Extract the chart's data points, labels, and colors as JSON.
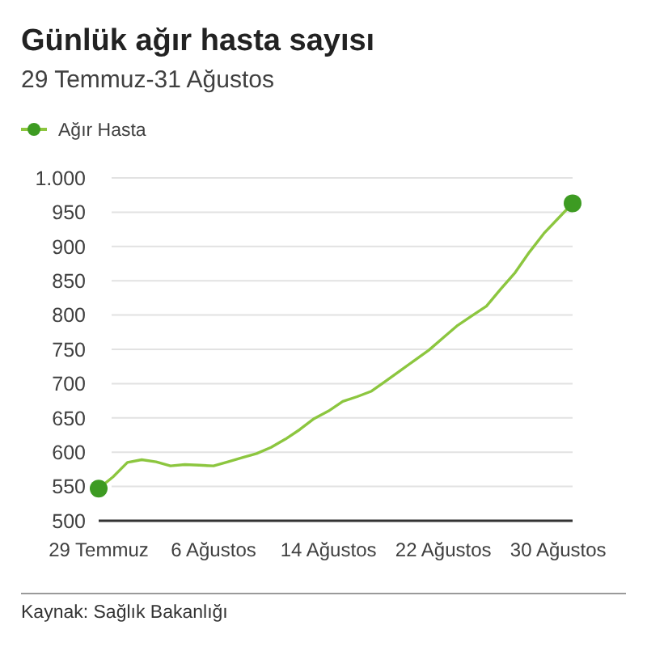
{
  "chart_data": {
    "type": "line",
    "title": "Günlük ağır hasta sayısı",
    "subtitle": "29 Temmuz-31 Ağustos",
    "x": [
      "--07-29",
      "--07-30",
      "--07-31",
      "--08-01",
      "--08-02",
      "--08-03",
      "--08-04",
      "--08-05",
      "--08-06",
      "--08-07",
      "--08-08",
      "--08-09",
      "--08-10",
      "--08-11",
      "--08-12",
      "--08-13",
      "--08-14",
      "--08-15",
      "--08-16",
      "--08-17",
      "--08-18",
      "--08-19",
      "--08-20",
      "--08-21",
      "--08-22",
      "--08-23",
      "--08-24",
      "--08-25",
      "--08-26",
      "--08-27",
      "--08-28",
      "--08-29",
      "--08-30",
      "--08-31"
    ],
    "series": [
      {
        "name": "Ağır Hasta",
        "color": "#8cc63f",
        "values": [
          547,
          564,
          585,
          589,
          586,
          580,
          582,
          581,
          580,
          586,
          592,
          598,
          607,
          619,
          633,
          649,
          660,
          674,
          681,
          689,
          704,
          719,
          734,
          749,
          767,
          785,
          799,
          813,
          838,
          862,
          892,
          919,
          941,
          963
        ]
      },
      {
        "type": "scatter",
        "color": "#3d9b22",
        "marker": "circle",
        "x": [
          "--07-29",
          "--08-31"
        ],
        "values": [
          547,
          963
        ]
      }
    ],
    "xlim": [
      "--07-29",
      "--08-31"
    ],
    "xticks": [
      {
        "value": "--07-29",
        "label": "29 Temmuz"
      },
      {
        "value": "--08-06",
        "label": "6 Ağustos"
      },
      {
        "value": "--08-14",
        "label": "14 Ağustos"
      },
      {
        "value": "--08-22",
        "label": "22 Ağustos"
      },
      {
        "value": "--08-30",
        "label": "30 Ağustos"
      }
    ],
    "ylim": [
      500,
      1000
    ],
    "yticks": [
      500,
      550,
      600,
      650,
      700,
      750,
      800,
      850,
      900,
      950,
      {
        "value": 1000,
        "label": "1.000"
      }
    ],
    "grid": "y",
    "legend": "top left",
    "annotations": [
      "Kaynak: Sağlık Bakanlığı"
    ]
  }
}
